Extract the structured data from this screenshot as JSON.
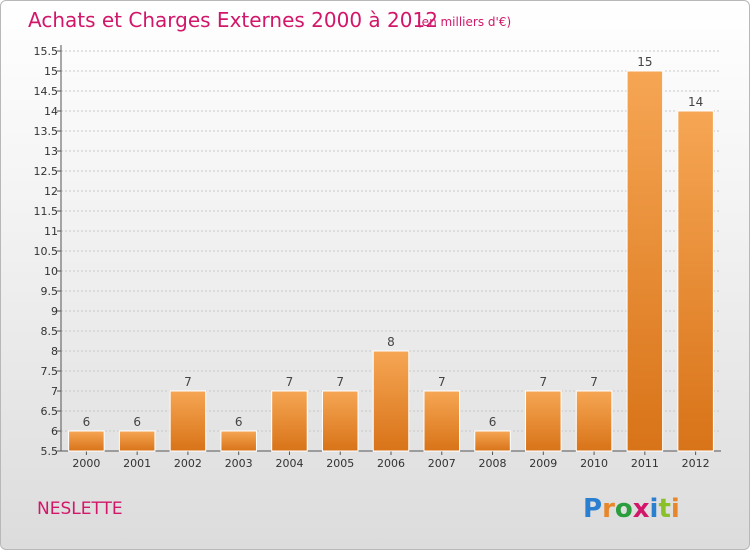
{
  "header": {
    "title": "Achats et Charges Externes 2000 à 2012",
    "unit": "(en milliers d'€)"
  },
  "footer": {
    "commune": "NESLETTE",
    "brand": "Proxiti"
  },
  "colors": {
    "title": "#d2176a",
    "bar_light": "#f6a654",
    "bar_dark": "#d87318",
    "axis": "#555555",
    "grid": "#c8c8c8"
  },
  "chart_data": {
    "type": "bar",
    "title": "Achats et Charges Externes 2000 à 2012",
    "subtitle": "(en milliers d'€)",
    "xlabel": "",
    "ylabel": "",
    "categories": [
      "2000",
      "2001",
      "2002",
      "2003",
      "2004",
      "2005",
      "2006",
      "2007",
      "2008",
      "2009",
      "2010",
      "2011",
      "2012"
    ],
    "values": [
      6,
      6,
      7,
      6,
      7,
      7,
      8,
      7,
      6,
      7,
      7,
      15,
      14
    ],
    "ylim": [
      5.5,
      15.5
    ],
    "yticks": [
      "5.5",
      "6",
      "6.5",
      "7",
      "7.5",
      "8",
      "8.5",
      "9",
      "9.5",
      "10",
      "10.5",
      "11",
      "11.5",
      "12",
      "12.5",
      "13",
      "13.5",
      "14",
      "14.5",
      "15",
      "15.5"
    ],
    "grid": true,
    "legend": "none"
  }
}
